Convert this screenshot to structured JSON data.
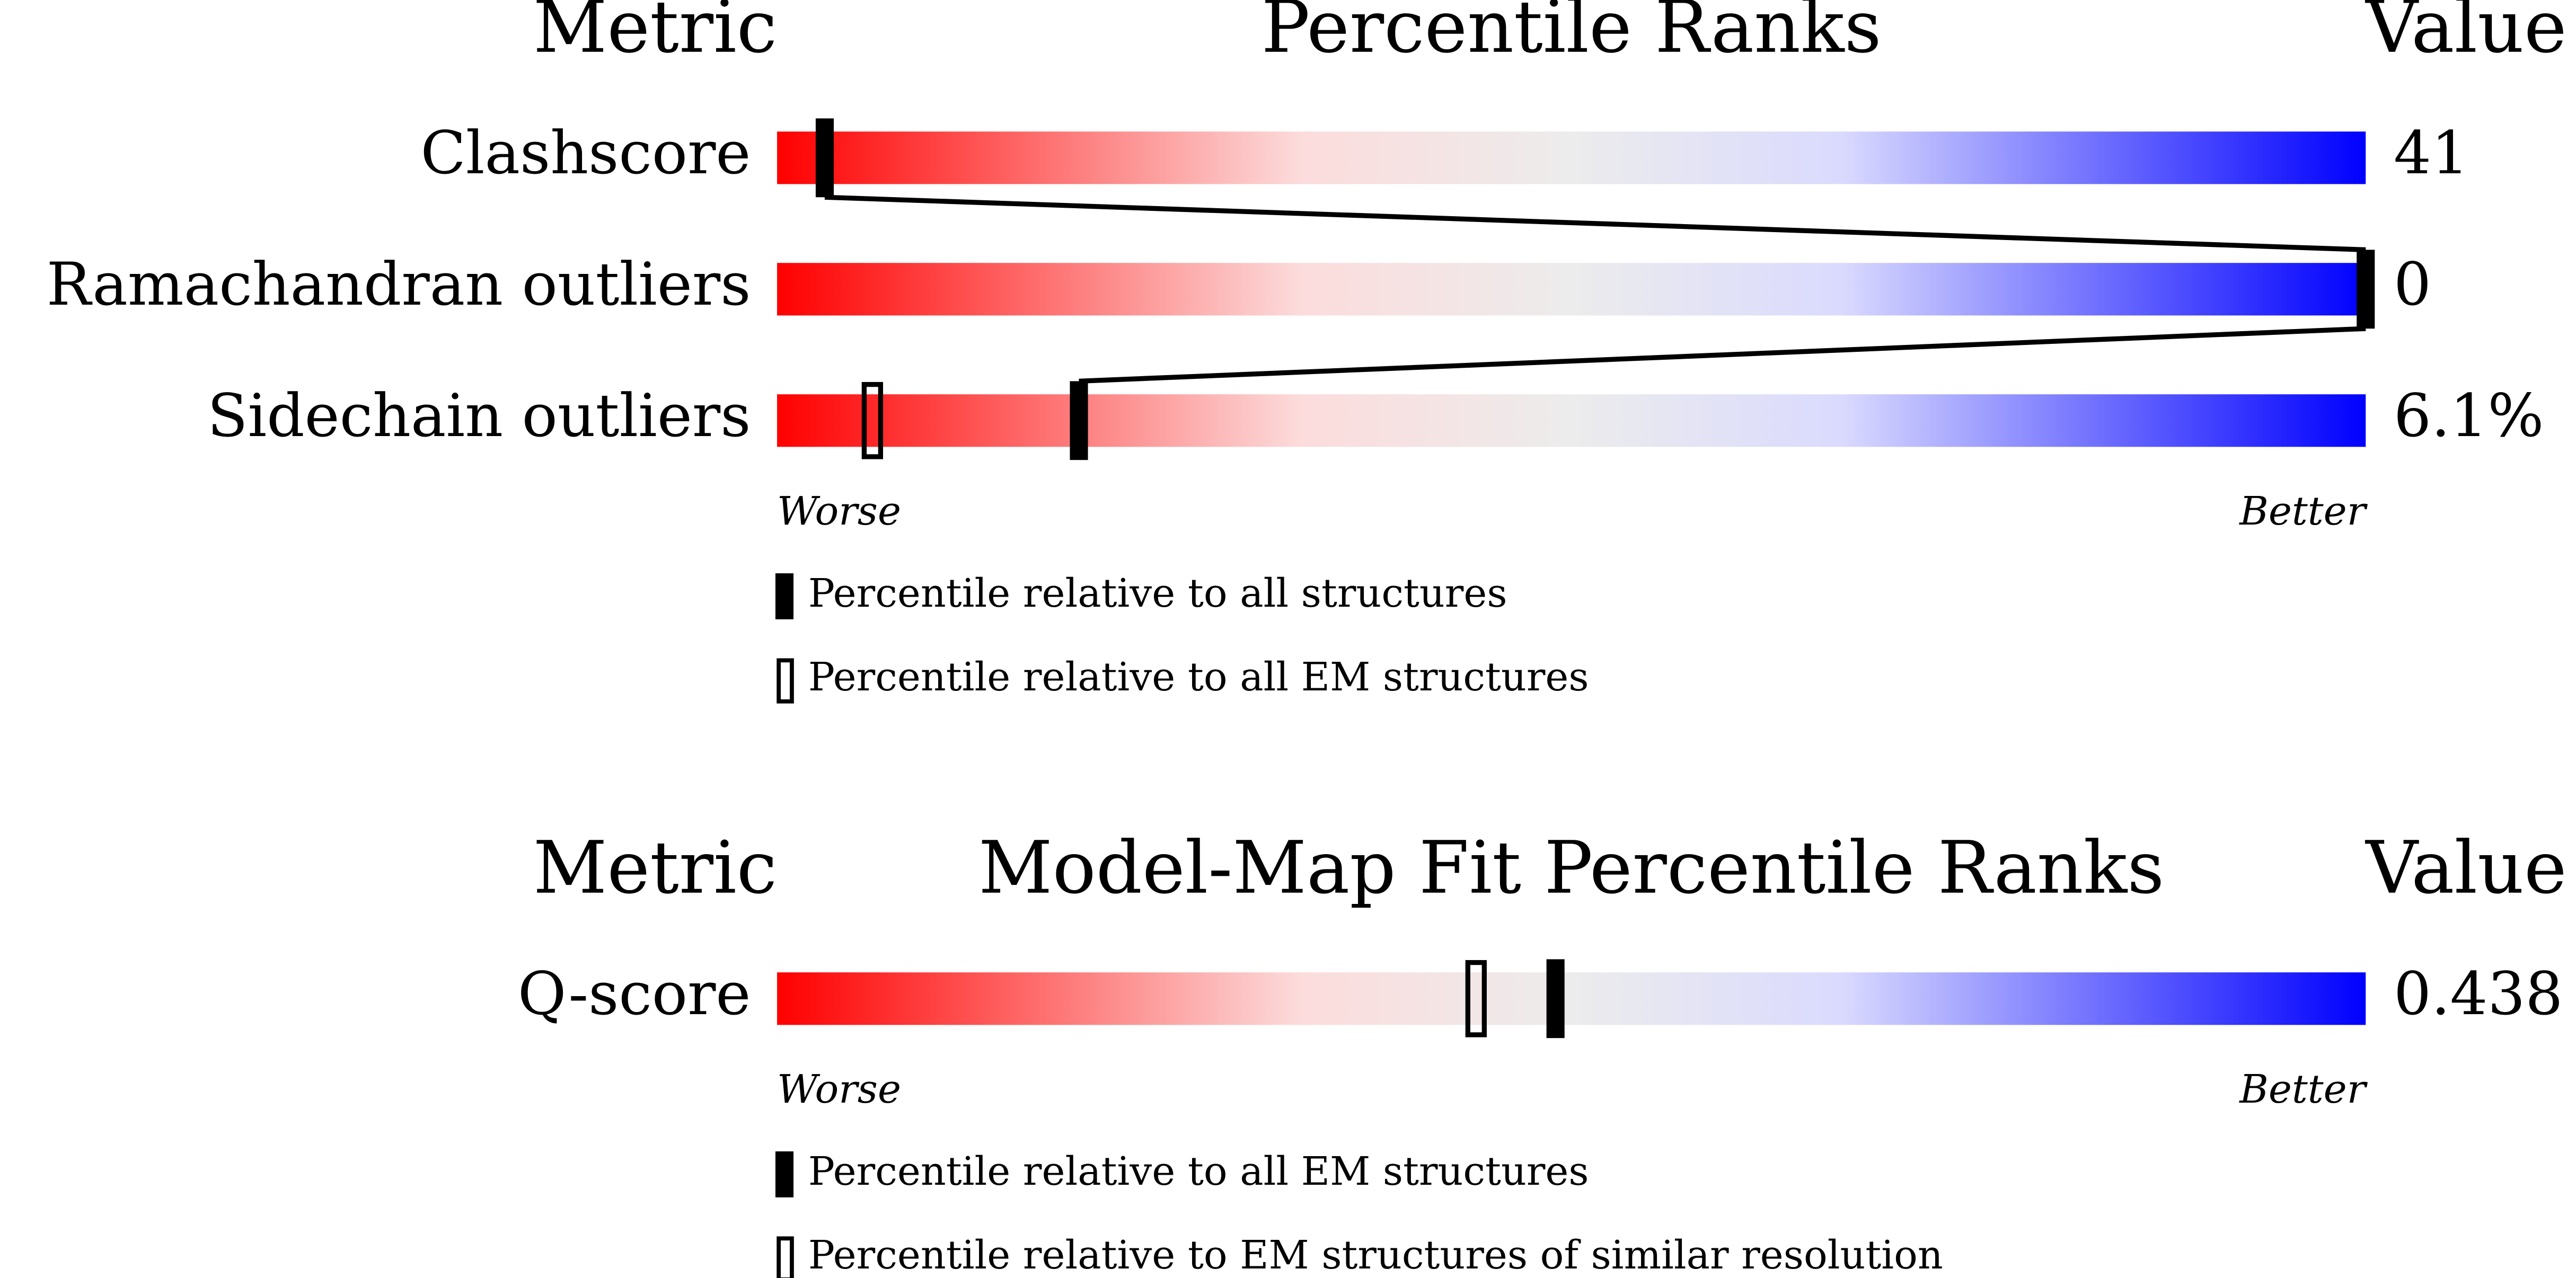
{
  "chart_data": [
    {
      "type": "percentile-slider",
      "metric_header": "Metric",
      "title": "Percentile Ranks",
      "value_header": "Value",
      "categories": [
        "Clashscore",
        "Ramachandran outliers",
        "Sidechain outliers"
      ],
      "metric_values": [
        "41",
        "0",
        "6.1%"
      ],
      "xlim": [
        0,
        100
      ],
      "series": [
        {
          "name": "Percentile relative to all structures",
          "style": "filled",
          "color": "#000000",
          "values": [
            3,
            100,
            19
          ]
        },
        {
          "name": "Percentile relative to all EM structures",
          "style": "open",
          "color": "#000000",
          "values": [
            null,
            null,
            6
          ]
        }
      ],
      "worse": "Worse",
      "better": "Better"
    },
    {
      "type": "percentile-slider",
      "metric_header": "Metric",
      "title": "Model-Map Fit Percentile Ranks",
      "value_header": "Value",
      "categories": [
        "Q-score"
      ],
      "metric_values": [
        "0.438"
      ],
      "xlim": [
        0,
        100
      ],
      "series": [
        {
          "name": "Percentile relative to all EM structures",
          "style": "filled",
          "color": "#000000",
          "values": [
            49
          ]
        },
        {
          "name": "Percentile relative to EM structures of similar resolution",
          "style": "open",
          "color": "#000000",
          "values": [
            44
          ]
        }
      ],
      "worse": "Worse",
      "better": "Better"
    }
  ]
}
